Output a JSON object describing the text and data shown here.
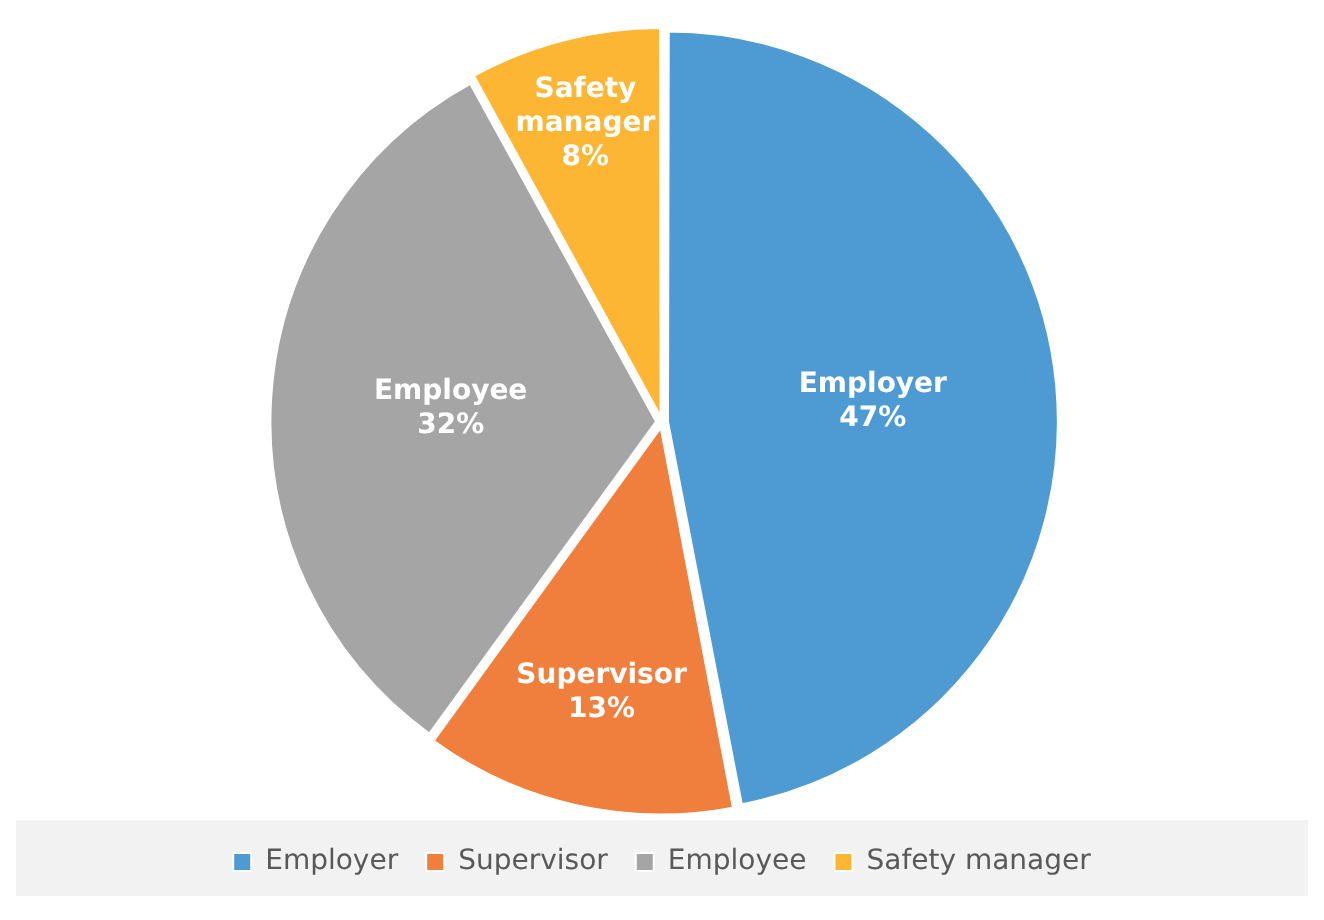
{
  "chart_data": {
    "type": "pie",
    "categories": [
      "Employer",
      "Supervisor",
      "Employee",
      "Safety manager"
    ],
    "values": [
      47,
      13,
      32,
      8
    ],
    "colors": [
      "#4e9bd4",
      "#f07e3c",
      "#a5a5a5",
      "#fdb633"
    ],
    "value_labels": [
      "47%",
      "13%",
      "32%",
      "8%"
    ],
    "legend": "bottom"
  }
}
